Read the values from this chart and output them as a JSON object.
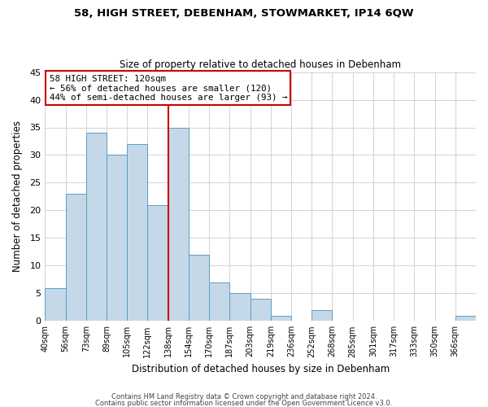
{
  "title1": "58, HIGH STREET, DEBENHAM, STOWMARKET, IP14 6QW",
  "title2": "Size of property relative to detached houses in Debenham",
  "xlabel": "Distribution of detached houses by size in Debenham",
  "ylabel": "Number of detached properties",
  "bin_labels": [
    "40sqm",
    "56sqm",
    "73sqm",
    "89sqm",
    "105sqm",
    "122sqm",
    "138sqm",
    "154sqm",
    "170sqm",
    "187sqm",
    "203sqm",
    "219sqm",
    "236sqm",
    "252sqm",
    "268sqm",
    "285sqm",
    "301sqm",
    "317sqm",
    "333sqm",
    "350sqm",
    "366sqm"
  ],
  "bar_heights": [
    6,
    23,
    34,
    30,
    32,
    21,
    35,
    12,
    7,
    5,
    4,
    1,
    0,
    2,
    0,
    0,
    0,
    0,
    0,
    0,
    1
  ],
  "bar_color": "#c5d8e8",
  "bar_edge_color": "#5a9fc0",
  "vline_color": "#cc0000",
  "vline_x": 6,
  "annotation_title": "58 HIGH STREET: 120sqm",
  "annotation_line1": "← 56% of detached houses are smaller (120)",
  "annotation_line2": "44% of semi-detached houses are larger (93) →",
  "annotation_box_edge": "#cc0000",
  "ylim": [
    0,
    45
  ],
  "yticks": [
    0,
    5,
    10,
    15,
    20,
    25,
    30,
    35,
    40,
    45
  ],
  "footer1": "Contains HM Land Registry data © Crown copyright and database right 2024.",
  "footer2": "Contains public sector information licensed under the Open Government Licence v3.0."
}
